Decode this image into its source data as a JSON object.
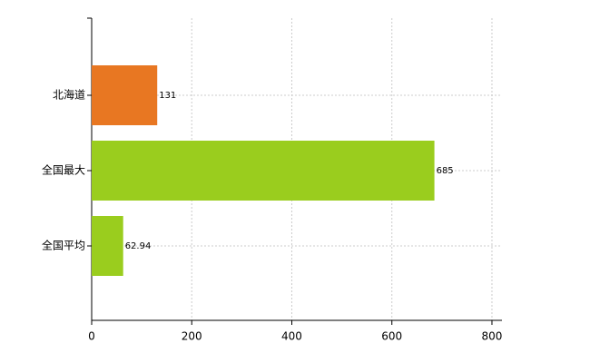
{
  "chart_data": {
    "type": "bar",
    "orientation": "horizontal",
    "categories": [
      "北海道",
      "全国最大",
      "全国平均"
    ],
    "values": [
      131,
      685,
      62.94
    ],
    "colors": [
      "#e87722",
      "#9acd1e",
      "#9acd1e"
    ],
    "xlim": [
      0,
      820
    ],
    "xticks": [
      0,
      200,
      400,
      600,
      800
    ],
    "grid": true
  }
}
